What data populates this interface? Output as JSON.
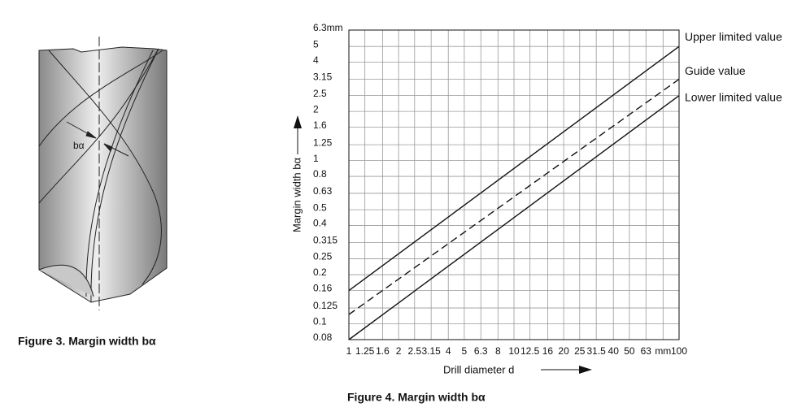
{
  "figure3": {
    "caption": "Figure 3. Margin width bα",
    "label": "bα"
  },
  "figure4": {
    "caption": "Figure 4. Margin width bα"
  },
  "chart_data": {
    "type": "line",
    "x_label": "Drill diameter d",
    "y_label": "Margin width bα",
    "x": [
      1,
      100
    ],
    "xscale": "log",
    "yscale": "log",
    "grid": true,
    "xlim": [
      1,
      100
    ],
    "ylim": [
      0.08,
      6.3
    ],
    "xticks": [
      1,
      1.25,
      1.6,
      2,
      2.5,
      3.15,
      4,
      5,
      6.3,
      8,
      10,
      12.5,
      16,
      20,
      25,
      31.5,
      40,
      50,
      63,
      {
        "value": 80,
        "label": "mm"
      },
      100
    ],
    "yticks": [
      0.08,
      0.1,
      0.125,
      0.16,
      0.2,
      0.25,
      0.315,
      0.4,
      0.5,
      0.63,
      0.8,
      1,
      1.25,
      1.6,
      2,
      2.5,
      3.15,
      4,
      5,
      {
        "value": 6.3,
        "label": "6.3mm"
      }
    ],
    "series": [
      {
        "name": "Upper limited value",
        "color": "#111111",
        "style": "solid",
        "values": [
          0.16,
          5
        ]
      },
      {
        "name": "Guide value",
        "color": "#111111",
        "style": "dashed",
        "values": [
          0.114,
          3.15
        ]
      },
      {
        "name": "Lower limited value",
        "color": "#111111",
        "style": "solid",
        "values": [
          0.08,
          2.5
        ]
      }
    ]
  }
}
